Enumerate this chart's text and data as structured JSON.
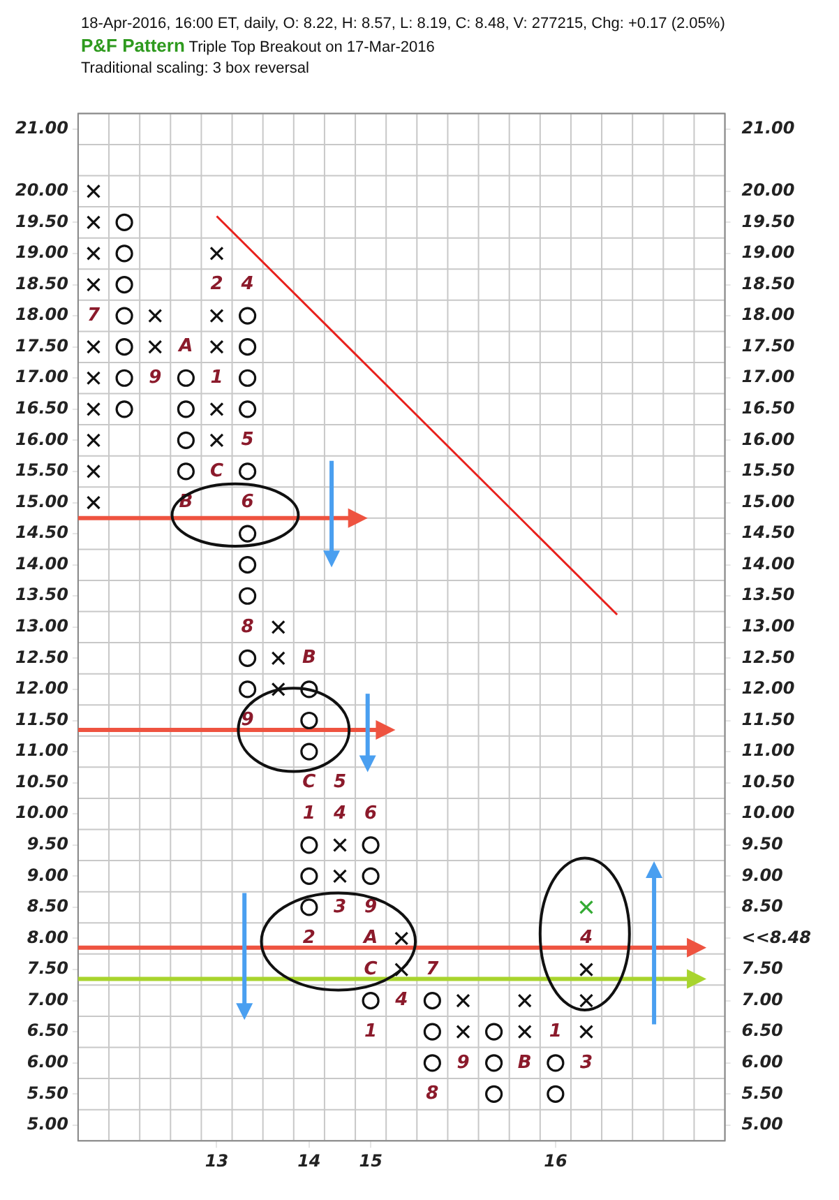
{
  "chart_data": {
    "type": "scatter",
    "subtitle": "18-Apr-2016, 16:00 ET, daily, O: 8.22, H: 8.57, L: 8.19, C: 8.48, V: 277215, Chg: +0.17 (2.05%)",
    "categories": [
      null,
      null,
      null,
      null,
      "13",
      null,
      null,
      "14",
      null,
      "15",
      null,
      null,
      null,
      null,
      null,
      "16",
      null,
      null,
      null,
      null,
      null
    ],
    "ylim": [
      4.75,
      21.25
    ],
    "yticks": [
      {
        "value": 5,
        "label": "5.00"
      },
      {
        "value": 5.5,
        "label": "5.50"
      },
      {
        "value": 6,
        "label": "6.00"
      },
      {
        "value": 6.5,
        "label": "6.50"
      },
      {
        "value": 7,
        "label": "7.00"
      },
      {
        "value": 7.5,
        "label": "7.50"
      },
      {
        "value": 8,
        "label": "8.00"
      },
      {
        "value": 8.5,
        "label": "8.50"
      },
      {
        "value": 9,
        "label": "9.00"
      },
      {
        "value": 9.5,
        "label": "9.50"
      },
      {
        "value": 10,
        "label": "10.00"
      },
      {
        "value": 10.5,
        "label": "10.50"
      },
      {
        "value": 11,
        "label": "11.00"
      },
      {
        "value": 11.5,
        "label": "11.50"
      },
      {
        "value": 12,
        "label": "12.00"
      },
      {
        "value": 12.5,
        "label": "12.50"
      },
      {
        "value": 13,
        "label": "13.00"
      },
      {
        "value": 13.5,
        "label": "13.50"
      },
      {
        "value": 14,
        "label": "14.00"
      },
      {
        "value": 14.5,
        "label": "14.50"
      },
      {
        "value": 15,
        "label": "15.00"
      },
      {
        "value": 15.5,
        "label": "15.50"
      },
      {
        "value": 16,
        "label": "16.00"
      },
      {
        "value": 16.5,
        "label": "16.50"
      },
      {
        "value": 17,
        "label": "17.00"
      },
      {
        "value": 17.5,
        "label": "17.50"
      },
      {
        "value": 18,
        "label": "18.00"
      },
      {
        "value": 18.5,
        "label": "18.50"
      },
      {
        "value": 19,
        "label": "19.00"
      },
      {
        "value": 19.5,
        "label": "19.50"
      },
      {
        "value": 20,
        "label": "20.00"
      },
      {
        "value": 21,
        "label": "21.00"
      }
    ],
    "y2lim": [
      4.75,
      21.25
    ],
    "y2ticks": [
      {
        "value": 5,
        "label": "5.00"
      },
      {
        "value": 5.5,
        "label": "5.50"
      },
      {
        "value": 6,
        "label": "6.00"
      },
      {
        "value": 6.5,
        "label": "6.50"
      },
      {
        "value": 7,
        "label": "7.00"
      },
      {
        "value": 7.5,
        "label": "7.50"
      },
      {
        "value": 8,
        "label": "<<8.48"
      },
      {
        "value": 8.5,
        "label": "8.50"
      },
      {
        "value": 9,
        "label": "9.00"
      },
      {
        "value": 9.5,
        "label": "9.50"
      },
      {
        "value": 10,
        "label": "10.00"
      },
      {
        "value": 10.5,
        "label": "10.50"
      },
      {
        "value": 11,
        "label": "11.00"
      },
      {
        "value": 11.5,
        "label": "11.50"
      },
      {
        "value": 12,
        "label": "12.00"
      },
      {
        "value": 12.5,
        "label": "12.50"
      },
      {
        "value": 13,
        "label": "13.00"
      },
      {
        "value": 13.5,
        "label": "13.50"
      },
      {
        "value": 14,
        "label": "14.00"
      },
      {
        "value": 14.5,
        "label": "14.50"
      },
      {
        "value": 15,
        "label": "15.00"
      },
      {
        "value": 15.5,
        "label": "15.50"
      },
      {
        "value": 16,
        "label": "16.00"
      },
      {
        "value": 16.5,
        "label": "16.50"
      },
      {
        "value": 17,
        "label": "17.00"
      },
      {
        "value": 17.5,
        "label": "17.50"
      },
      {
        "value": 18,
        "label": "18.00"
      },
      {
        "value": 18.5,
        "label": "18.50"
      },
      {
        "value": 19,
        "label": "19.00"
      },
      {
        "value": 19.5,
        "label": "19.50"
      },
      {
        "value": 20,
        "label": "20.00"
      },
      {
        "value": 21,
        "label": "21.00"
      }
    ],
    "grid": true,
    "series": [
      {
        "marker": "cross",
        "color": "#111111",
        "values": [
          15,
          null,
          17.5,
          null,
          16,
          null,
          12,
          null,
          9,
          null,
          7.5,
          null,
          6.5,
          null,
          6.5,
          null,
          6.5,
          null,
          null,
          null,
          null
        ]
      },
      {
        "marker": "cross",
        "color": "#111111",
        "values": [
          15.5,
          null,
          18,
          null,
          16.5,
          null,
          12.5,
          null,
          9.5,
          null,
          8,
          null,
          7,
          null,
          7,
          null,
          7,
          null,
          null,
          null,
          null
        ]
      },
      {
        "marker": "cross",
        "color": "#111111",
        "values": [
          16,
          null,
          null,
          null,
          17.5,
          null,
          13,
          null,
          null,
          null,
          null,
          null,
          null,
          null,
          null,
          null,
          7.5,
          null,
          null,
          null,
          null
        ]
      },
      {
        "marker": "cross",
        "color": "#111111",
        "values": [
          16.5,
          null,
          null,
          null,
          18,
          null,
          null,
          null,
          null,
          null,
          null,
          null,
          null,
          null,
          null,
          null,
          null,
          null,
          null,
          null,
          null
        ]
      },
      {
        "marker": "cross",
        "color": "#111111",
        "values": [
          17,
          null,
          null,
          null,
          19,
          null,
          null,
          null,
          null,
          null,
          null,
          null,
          null,
          null,
          null,
          null,
          null,
          null,
          null,
          null,
          null
        ]
      },
      {
        "marker": "cross",
        "color": "#111111",
        "values": [
          17.5,
          null,
          null,
          null,
          null,
          null,
          null,
          null,
          null,
          null,
          null,
          null,
          null,
          null,
          null,
          null,
          null,
          null,
          null,
          null,
          null
        ]
      },
      {
        "marker": "cross",
        "color": "#111111",
        "values": [
          18.5,
          null,
          null,
          null,
          null,
          null,
          null,
          null,
          null,
          null,
          null,
          null,
          null,
          null,
          null,
          null,
          null,
          null,
          null,
          null,
          null
        ]
      },
      {
        "marker": "cross",
        "color": "#111111",
        "values": [
          19,
          null,
          null,
          null,
          null,
          null,
          null,
          null,
          null,
          null,
          null,
          null,
          null,
          null,
          null,
          null,
          null,
          null,
          null,
          null,
          null
        ]
      },
      {
        "marker": "cross",
        "color": "#111111",
        "values": [
          19.5,
          null,
          null,
          null,
          null,
          null,
          null,
          null,
          null,
          null,
          null,
          null,
          null,
          null,
          null,
          null,
          null,
          null,
          null,
          null,
          null
        ]
      },
      {
        "marker": "cross",
        "color": "#111111",
        "values": [
          20,
          null,
          null,
          null,
          null,
          null,
          null,
          null,
          null,
          null,
          null,
          null,
          null,
          null,
          null,
          null,
          null,
          null,
          null,
          null,
          null
        ]
      },
      {
        "marker": "circle",
        "color": "#111111",
        "values": [
          null,
          16.5,
          null,
          15.5,
          null,
          12,
          null,
          8.5,
          null,
          7,
          null,
          6,
          null,
          5.5,
          null,
          5.5,
          null,
          null,
          null,
          null,
          null
        ]
      },
      {
        "marker": "circle",
        "color": "#111111",
        "values": [
          null,
          17,
          null,
          16,
          null,
          12.5,
          null,
          9,
          null,
          9,
          null,
          6.5,
          null,
          6,
          null,
          6,
          null,
          null,
          null,
          null,
          null
        ]
      },
      {
        "marker": "circle",
        "color": "#111111",
        "values": [
          null,
          17.5,
          null,
          16.5,
          null,
          13.5,
          null,
          9.5,
          null,
          9.5,
          null,
          7,
          null,
          6.5,
          null,
          null,
          null,
          null,
          null,
          null,
          null
        ]
      },
      {
        "marker": "circle",
        "color": "#111111",
        "values": [
          null,
          18,
          null,
          17,
          null,
          14,
          null,
          11,
          null,
          null,
          null,
          null,
          null,
          null,
          null,
          null,
          null,
          null,
          null,
          null,
          null
        ]
      },
      {
        "marker": "circle",
        "color": "#111111",
        "values": [
          null,
          18.5,
          null,
          null,
          null,
          14.5,
          null,
          11.5,
          null,
          null,
          null,
          null,
          null,
          null,
          null,
          null,
          null,
          null,
          null,
          null,
          null
        ]
      },
      {
        "marker": "circle",
        "color": "#111111",
        "values": [
          null,
          19,
          null,
          null,
          null,
          15.5,
          null,
          12,
          null,
          null,
          null,
          null,
          null,
          null,
          null,
          null,
          null,
          null,
          null,
          null,
          null
        ]
      },
      {
        "marker": "circle",
        "color": "#111111",
        "values": [
          null,
          19.5,
          null,
          null,
          null,
          16.5,
          null,
          null,
          null,
          null,
          null,
          null,
          null,
          null,
          null,
          null,
          null,
          null,
          null,
          null,
          null
        ]
      },
      {
        "marker": "circle",
        "color": "#111111",
        "values": [
          null,
          null,
          null,
          null,
          null,
          17,
          null,
          null,
          null,
          null,
          null,
          null,
          null,
          null,
          null,
          null,
          null,
          null,
          null,
          null,
          null
        ]
      },
      {
        "marker": "circle",
        "color": "#111111",
        "values": [
          null,
          null,
          null,
          null,
          null,
          17.5,
          null,
          null,
          null,
          null,
          null,
          null,
          null,
          null,
          null,
          null,
          null,
          null,
          null,
          null,
          null
        ]
      },
      {
        "marker": "circle",
        "color": "#111111",
        "values": [
          null,
          null,
          null,
          null,
          null,
          18,
          null,
          null,
          null,
          null,
          null,
          null,
          null,
          null,
          null,
          null,
          null,
          null,
          null,
          null,
          null
        ]
      },
      {
        "marker": "cross",
        "color": "#33aa33",
        "values": [
          null,
          null,
          null,
          null,
          null,
          null,
          null,
          null,
          null,
          null,
          null,
          null,
          null,
          null,
          null,
          null,
          8.5,
          null,
          null,
          null,
          null
        ]
      },
      {
        "type": "line",
        "marker": "none",
        "color": "#e8201c",
        "values": [
          null,
          null,
          null,
          null,
          19.6,
          null,
          null,
          null,
          null,
          null,
          null,
          null,
          null,
          null,
          null,
          null,
          null,
          13.2,
          null,
          null,
          null
        ]
      }
    ],
    "ref_lines": [
      {
        "axis": "y",
        "value": 14.75,
        "color": "#ee5340"
      },
      {
        "axis": "y",
        "value": 11.35,
        "color": "#ee5340"
      },
      {
        "axis": "y",
        "value": 7.85,
        "color": "#ee5340"
      },
      {
        "axis": "y",
        "value": 7.35,
        "color": "#a8d42e"
      }
    ],
    "annotations": [
      "P&F Pattern",
      "Triple Top Breakout on 17-Mar-2016",
      "Traditional scaling: 3 box reversal",
      "7",
      "9",
      "A",
      "B",
      "2",
      "1",
      "C",
      "4",
      "5",
      "6",
      "8",
      "9",
      "B",
      "C",
      "1",
      "2",
      "5",
      "4",
      "3",
      "6",
      "9",
      "A",
      "C",
      "1",
      "4",
      "7",
      "8",
      "9",
      "B",
      "1",
      "3",
      "4"
    ]
  }
}
